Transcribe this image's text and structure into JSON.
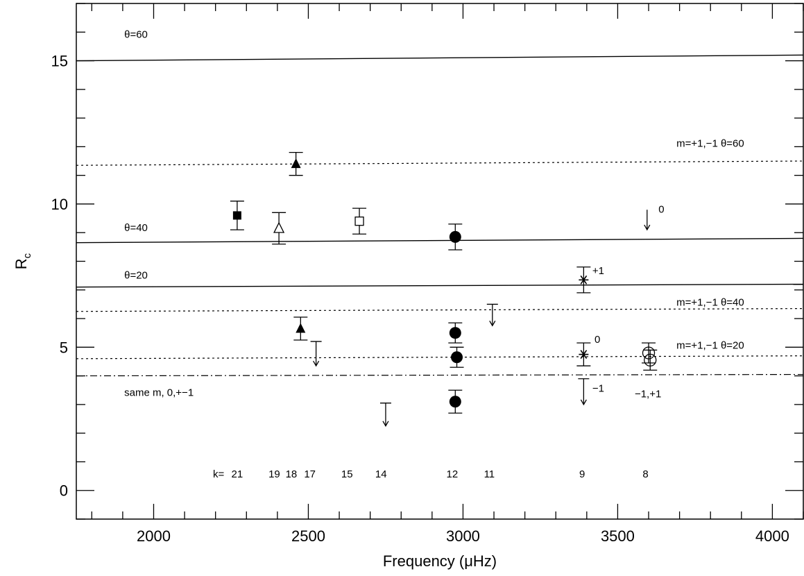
{
  "chart_data": {
    "type": "scatter",
    "xlabel": "Frequency (μHz)",
    "ylabel": "R",
    "ylabel_sub": "c",
    "xlim": [
      1750,
      4100
    ],
    "ylim": [
      -1,
      17
    ],
    "x_ticks": [
      2000,
      2500,
      3000,
      3500,
      4000
    ],
    "y_ticks": [
      0,
      5,
      10,
      15
    ],
    "grid": false,
    "lines": [
      {
        "label": "θ=60",
        "style": "solid",
        "y": [
          15.0,
          15.2
        ],
        "label_pos": [
          1905,
          15.8
        ]
      },
      {
        "label": "m=+1,−1 θ=60",
        "style": "dotted",
        "y": [
          11.35,
          11.5
        ],
        "label_pos": [
          3690,
          12.0
        ]
      },
      {
        "label": "θ=40",
        "style": "solid",
        "y": [
          8.65,
          8.8
        ],
        "label_pos": [
          1905,
          9.05
        ]
      },
      {
        "label": "θ=20",
        "style": "solid",
        "y": [
          7.1,
          7.2
        ],
        "label_pos": [
          1905,
          7.4
        ]
      },
      {
        "label": "m=+1,−1 θ=40",
        "style": "dotted",
        "y": [
          6.25,
          6.35
        ],
        "label_pos": [
          3690,
          6.45
        ]
      },
      {
        "label": "m=+1,−1 θ=20",
        "style": "dotted",
        "y": [
          4.6,
          4.7
        ],
        "label_pos": [
          3690,
          4.95
        ]
      },
      {
        "label": "same m, 0,+−1",
        "style": "dashdot",
        "y": [
          4.0,
          4.05
        ],
        "label_pos": [
          1905,
          3.3
        ]
      }
    ],
    "points": [
      {
        "x": 2270,
        "y": 9.6,
        "err": 0.5,
        "marker": "square-filled"
      },
      {
        "x": 2405,
        "y": 9.15,
        "err": 0.55,
        "marker": "triangle-open"
      },
      {
        "x": 2460,
        "y": 11.4,
        "err": 0.4,
        "marker": "triangle-filled"
      },
      {
        "x": 2475,
        "y": 5.65,
        "err": 0.4,
        "marker": "triangle-filled"
      },
      {
        "x": 2665,
        "y": 9.4,
        "err": 0.45,
        "marker": "square-open"
      },
      {
        "x": 2975,
        "y": 8.85,
        "err": 0.45,
        "marker": "circle-filled"
      },
      {
        "x": 2975,
        "y": 5.5,
        "err": 0.35,
        "marker": "circle-filled"
      },
      {
        "x": 2980,
        "y": 4.65,
        "err": 0.35,
        "marker": "circle-filled"
      },
      {
        "x": 2975,
        "y": 3.1,
        "err": 0.4,
        "marker": "circle-filled"
      },
      {
        "x": 3390,
        "y": 7.35,
        "err": 0.45,
        "marker": "star"
      },
      {
        "x": 3390,
        "y": 4.75,
        "err": 0.4,
        "marker": "star"
      },
      {
        "x": 3600,
        "y": 4.8,
        "err": 0.35,
        "marker": "circle-open"
      },
      {
        "x": 3605,
        "y": 4.55,
        "err": 0.35,
        "marker": "circle-open"
      }
    ],
    "upper_limits": [
      {
        "x": 2525,
        "y": 5.2,
        "y_end": 4.35,
        "cap": true
      },
      {
        "x": 2750,
        "y": 3.05,
        "y_end": 2.25,
        "cap": true
      },
      {
        "x": 3095,
        "y": 6.5,
        "y_end": 5.75,
        "cap": true
      },
      {
        "x": 3390,
        "y": 3.9,
        "y_end": 3.0,
        "cap": true
      },
      {
        "x": 3595,
        "y": 9.8,
        "y_end": 9.1,
        "cap": false
      }
    ],
    "annotations": [
      {
        "text": "0",
        "x": 3632,
        "y": 9.7
      },
      {
        "text": "+1",
        "x": 3418,
        "y": 7.55
      },
      {
        "text": "0",
        "x": 3425,
        "y": 5.15
      },
      {
        "text": "−1",
        "x": 3418,
        "y": 3.45
      },
      {
        "text": "−1,+1",
        "x": 3555,
        "y": 3.25
      }
    ],
    "k_row": {
      "y": 0.45,
      "labels": [
        {
          "text": "k=",
          "x": 2210
        },
        {
          "text": "21",
          "x": 2270
        },
        {
          "text": "19",
          "x": 2390
        },
        {
          "text": "18",
          "x": 2445
        },
        {
          "text": "17",
          "x": 2505
        },
        {
          "text": "15",
          "x": 2625
        },
        {
          "text": "14",
          "x": 2735
        },
        {
          "text": "12",
          "x": 2965
        },
        {
          "text": "11",
          "x": 3085
        },
        {
          "text": "9",
          "x": 3385
        },
        {
          "text": "8",
          "x": 3590
        }
      ]
    }
  }
}
